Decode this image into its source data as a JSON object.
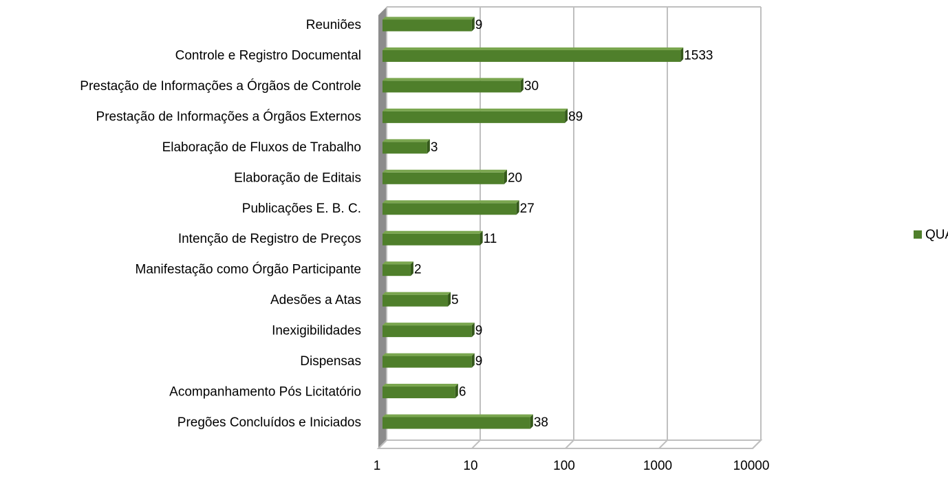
{
  "chart_data": {
    "type": "bar",
    "orientation": "horizontal",
    "categories": [
      "Reuniões",
      "Controle e Registro Documental",
      "Prestação de Informações a Órgãos de Controle",
      "Prestação de Informações a Órgãos Externos",
      "Elaboração de Fluxos de Trabalho",
      "Elaboração de Editais",
      "Publicações E. B. C.",
      "Intenção de Registro de Preços",
      "Manifestação como Órgão Participante",
      "Adesões a Atas",
      "Inexigibilidades",
      "Dispensas",
      "Acompanhamento Pós Licitatório",
      "Pregões Concluídos e Iniciados"
    ],
    "series": [
      {
        "name": "QUANTIDADE",
        "color": "#4f7f2b",
        "values": [
          9,
          1533,
          30,
          89,
          3,
          20,
          27,
          11,
          2,
          5,
          9,
          9,
          6,
          38
        ]
      }
    ],
    "xlim": [
      1,
      10000
    ],
    "xticks": [
      1,
      10,
      100,
      1000,
      10000
    ],
    "log_scale": true,
    "grid": true,
    "legend": "right"
  }
}
